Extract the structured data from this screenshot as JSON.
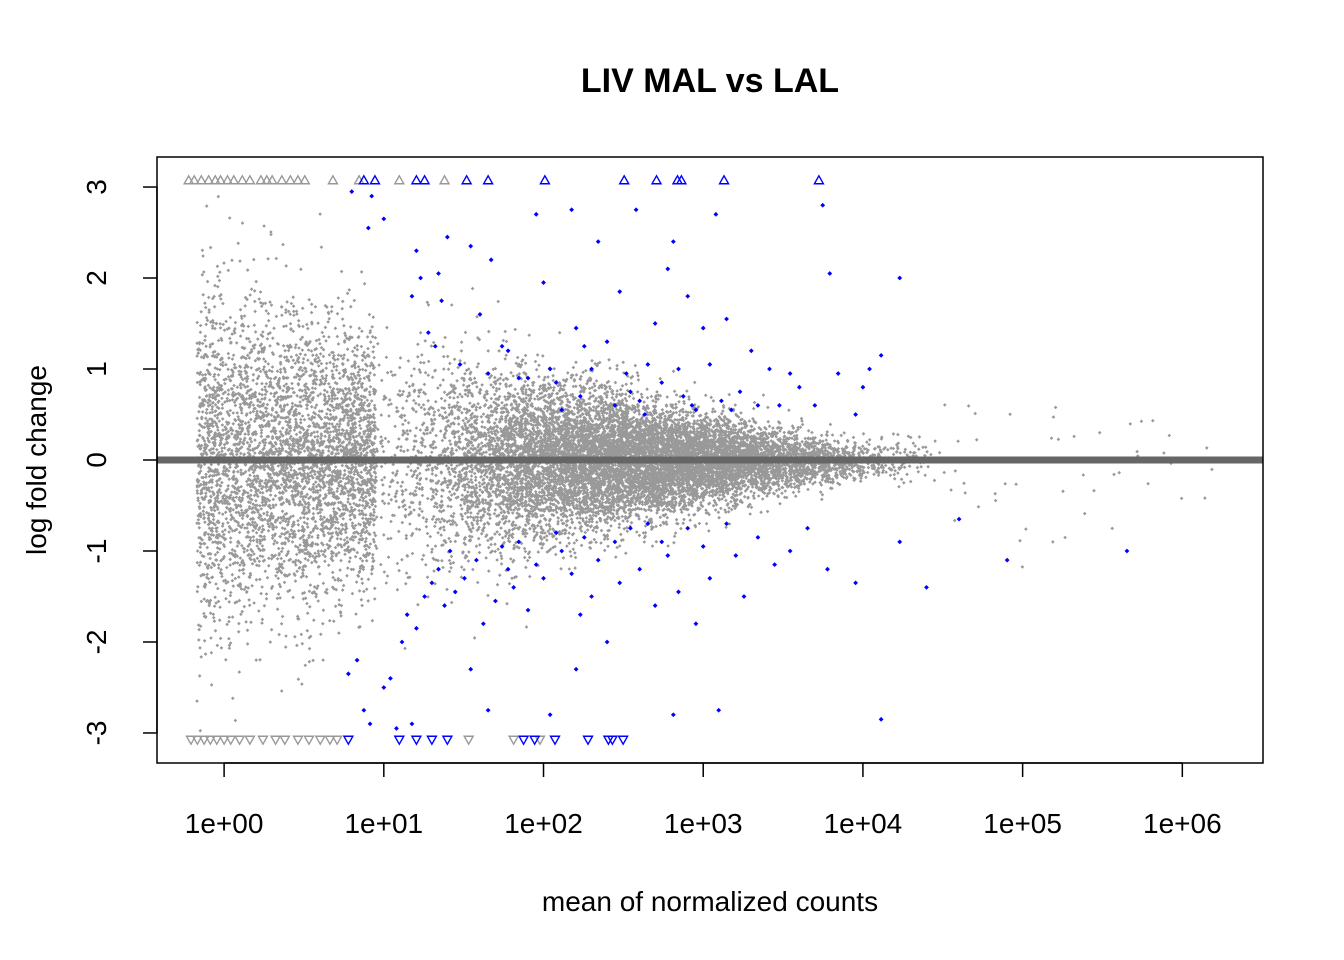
{
  "chart_data": {
    "type": "scatter",
    "title": "LIV MAL vs LAL",
    "xlabel": "mean of normalized counts",
    "ylabel": "log fold change",
    "x_scale": "log10",
    "xlim": [
      0.38,
      3200000
    ],
    "ylim": [
      -3.33,
      3.33
    ],
    "x_ticks": [
      {
        "value": 1,
        "label": "1e+00"
      },
      {
        "value": 10,
        "label": "1e+01"
      },
      {
        "value": 100,
        "label": "1e+02"
      },
      {
        "value": 1000,
        "label": "1e+03"
      },
      {
        "value": 10000,
        "label": "1e+04"
      },
      {
        "value": 100000,
        "label": "1e+05"
      },
      {
        "value": 1000000,
        "label": "1e+06"
      }
    ],
    "y_ticks": [
      {
        "value": -3,
        "label": "-3"
      },
      {
        "value": -2,
        "label": "-2"
      },
      {
        "value": -1,
        "label": "-1"
      },
      {
        "value": 0,
        "label": "0"
      },
      {
        "value": 1,
        "label": "1"
      },
      {
        "value": 2,
        "label": "2"
      },
      {
        "value": 3,
        "label": "3"
      }
    ],
    "reference_line": {
      "y": 0,
      "color": "#666666"
    },
    "grid": false,
    "legend": "none",
    "colors": {
      "nonsignificant": "#999999",
      "significant": "#0000ff"
    },
    "series": [
      {
        "color": "#0000ff",
        "marker": "point",
        "points": [
          [
            6.3,
            2.95
          ],
          [
            8.4,
            2.9
          ],
          [
            10.0,
            2.65
          ],
          [
            8.0,
            2.55
          ],
          [
            16,
            2.3
          ],
          [
            15,
            1.8
          ],
          [
            17,
            2.0
          ],
          [
            19,
            1.4
          ],
          [
            21,
            1.25
          ],
          [
            22,
            2.05
          ],
          [
            23,
            1.75
          ],
          [
            25,
            2.45
          ],
          [
            30,
            1.05
          ],
          [
            35,
            2.35
          ],
          [
            40,
            1.6
          ],
          [
            45,
            0.95
          ],
          [
            47,
            2.2
          ],
          [
            55,
            1.25
          ],
          [
            60,
            1.2
          ],
          [
            70,
            0.9
          ],
          [
            80,
            0.9
          ],
          [
            90,
            2.7
          ],
          [
            100,
            1.95
          ],
          [
            110,
            1.0
          ],
          [
            120,
            0.85
          ],
          [
            130,
            0.55
          ],
          [
            150,
            2.75
          ],
          [
            160,
            1.45
          ],
          [
            170,
            0.7
          ],
          [
            180,
            1.25
          ],
          [
            200,
            1.0
          ],
          [
            220,
            2.4
          ],
          [
            250,
            1.3
          ],
          [
            280,
            0.6
          ],
          [
            300,
            1.85
          ],
          [
            330,
            0.95
          ],
          [
            350,
            0.75
          ],
          [
            380,
            2.75
          ],
          [
            400,
            0.65
          ],
          [
            430,
            0.5
          ],
          [
            450,
            1.05
          ],
          [
            500,
            1.5
          ],
          [
            550,
            0.85
          ],
          [
            600,
            2.1
          ],
          [
            650,
            2.4
          ],
          [
            700,
            1.0
          ],
          [
            750,
            0.7
          ],
          [
            800,
            1.8
          ],
          [
            850,
            0.6
          ],
          [
            900,
            0.55
          ],
          [
            1000,
            1.45
          ],
          [
            1100,
            1.05
          ],
          [
            1200,
            2.7
          ],
          [
            1300,
            0.65
          ],
          [
            1400,
            1.55
          ],
          [
            1500,
            0.55
          ],
          [
            1700,
            0.75
          ],
          [
            2000,
            1.2
          ],
          [
            2200,
            0.6
          ],
          [
            2600,
            1.0
          ],
          [
            3000,
            0.6
          ],
          [
            3500,
            0.95
          ],
          [
            4000,
            0.8
          ],
          [
            5000,
            0.6
          ],
          [
            5600,
            2.8
          ],
          [
            6200,
            2.05
          ],
          [
            7000,
            0.95
          ],
          [
            9000,
            0.5
          ],
          [
            10000,
            0.8
          ],
          [
            11000,
            1.0
          ],
          [
            13000,
            1.15
          ],
          [
            17000,
            2.0
          ],
          [
            6.0,
            -2.35
          ],
          [
            6.8,
            -2.2
          ],
          [
            7.5,
            -2.75
          ],
          [
            8.2,
            -2.9
          ],
          [
            10,
            -2.5
          ],
          [
            11,
            -2.4
          ],
          [
            12,
            -2.95
          ],
          [
            13,
            -2.0
          ],
          [
            14,
            -1.7
          ],
          [
            15,
            -2.9
          ],
          [
            16,
            -1.85
          ],
          [
            18,
            -1.5
          ],
          [
            20,
            -1.35
          ],
          [
            22,
            -1.2
          ],
          [
            24,
            -1.6
          ],
          [
            26,
            -1.0
          ],
          [
            28,
            -1.45
          ],
          [
            32,
            -1.3
          ],
          [
            35,
            -2.3
          ],
          [
            38,
            -1.1
          ],
          [
            42,
            -1.8
          ],
          [
            45,
            -2.75
          ],
          [
            50,
            -1.55
          ],
          [
            55,
            -0.95
          ],
          [
            60,
            -1.2
          ],
          [
            65,
            -1.4
          ],
          [
            70,
            -0.9
          ],
          [
            80,
            -1.65
          ],
          [
            90,
            -1.15
          ],
          [
            100,
            -1.3
          ],
          [
            110,
            -2.8
          ],
          [
            120,
            -0.8
          ],
          [
            130,
            -1.0
          ],
          [
            150,
            -1.25
          ],
          [
            160,
            -2.3
          ],
          [
            170,
            -1.7
          ],
          [
            180,
            -0.85
          ],
          [
            200,
            -1.5
          ],
          [
            220,
            -1.1
          ],
          [
            250,
            -2.0
          ],
          [
            280,
            -0.9
          ],
          [
            300,
            -1.35
          ],
          [
            350,
            -0.75
          ],
          [
            400,
            -1.2
          ],
          [
            450,
            -0.7
          ],
          [
            500,
            -1.6
          ],
          [
            550,
            -0.9
          ],
          [
            600,
            -1.05
          ],
          [
            650,
            -2.8
          ],
          [
            700,
            -1.45
          ],
          [
            800,
            -0.75
          ],
          [
            900,
            -1.8
          ],
          [
            1000,
            -0.95
          ],
          [
            1100,
            -1.3
          ],
          [
            1250,
            -2.75
          ],
          [
            1400,
            -0.7
          ],
          [
            1600,
            -1.05
          ],
          [
            1800,
            -1.5
          ],
          [
            2200,
            -0.85
          ],
          [
            2800,
            -1.15
          ],
          [
            3500,
            -1.0
          ],
          [
            4500,
            -0.75
          ],
          [
            6000,
            -1.2
          ],
          [
            9000,
            -1.35
          ],
          [
            13000,
            -2.85
          ],
          [
            17000,
            -0.9
          ],
          [
            25000,
            -1.4
          ],
          [
            40000,
            -0.65
          ],
          [
            80000,
            -1.1
          ],
          [
            450000,
            -1.0
          ]
        ]
      },
      {
        "color": "#999999",
        "marker": "up-triangle",
        "y": 3.08,
        "x": [
          0.6,
          0.65,
          0.72,
          0.8,
          0.88,
          0.95,
          1.05,
          1.15,
          1.3,
          1.45,
          1.7,
          1.85,
          2.0,
          2.3,
          2.6,
          2.9,
          3.2,
          4.8,
          7.0,
          12.5,
          24
        ]
      },
      {
        "color": "#0000ff",
        "marker": "up-triangle",
        "y": 3.08,
        "x": [
          7.5,
          8.8,
          16,
          18,
          33,
          45,
          102,
          320,
          510,
          690,
          730,
          1350,
          5300
        ]
      },
      {
        "color": "#999999",
        "marker": "down-triangle",
        "y": -3.08,
        "x": [
          0.62,
          0.68,
          0.75,
          0.82,
          0.9,
          1.0,
          1.1,
          1.25,
          1.45,
          1.75,
          2.1,
          2.4,
          2.9,
          3.4,
          4.0,
          4.6,
          5.1,
          34,
          65,
          95
        ]
      },
      {
        "color": "#0000ff",
        "marker": "down-triangle",
        "y": -3.08,
        "x": [
          6.0,
          12.5,
          16,
          20,
          25,
          75,
          88,
          118,
          190,
          255,
          270,
          315
        ]
      }
    ]
  }
}
